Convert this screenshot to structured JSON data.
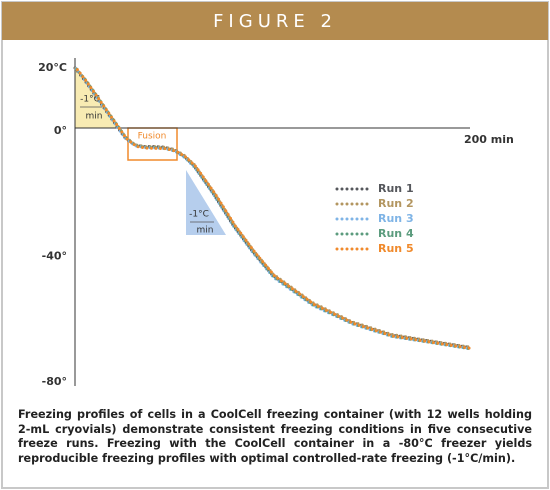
{
  "header": {
    "title": "FIGURE 2"
  },
  "chart_data": {
    "type": "line",
    "x": [
      0,
      5,
      10,
      15,
      20,
      25,
      30,
      35,
      40,
      45,
      50,
      55,
      60,
      70,
      80,
      90,
      100,
      120,
      140,
      160,
      180,
      200
    ],
    "series": [
      {
        "name": "Run 1",
        "color": "#55575c",
        "values": [
          20,
          16,
          11.5,
          7,
          2.5,
          -2,
          -4.5,
          -5,
          -5,
          -5.2,
          -6,
          -8,
          -11,
          -20,
          -30,
          -38.5,
          -46,
          -55,
          -61,
          -65,
          -67,
          -69
        ]
      },
      {
        "name": "Run 2",
        "color": "#b39660",
        "values": [
          20,
          16.3,
          11.8,
          7.3,
          2.8,
          -1.7,
          -4.3,
          -4.9,
          -4.9,
          -5.1,
          -5.8,
          -7.7,
          -10.6,
          -19.5,
          -29.5,
          -38,
          -45.5,
          -54.6,
          -60.7,
          -64.7,
          -66.8,
          -68.8
        ]
      },
      {
        "name": "Run 3",
        "color": "#7fb4e6",
        "values": [
          20,
          15.8,
          11.2,
          6.8,
          2.2,
          -2.2,
          -4.6,
          -5.1,
          -5.2,
          -5.4,
          -6.2,
          -8.3,
          -11.4,
          -20.5,
          -30.5,
          -39,
          -46.5,
          -55.4,
          -61.3,
          -65.3,
          -67.2,
          -69.2
        ]
      },
      {
        "name": "Run 4",
        "color": "#5c9c7e",
        "values": [
          20,
          16.1,
          11.6,
          7.1,
          2.6,
          -1.9,
          -4.4,
          -5,
          -5,
          -5.3,
          -6.1,
          -8.1,
          -11.2,
          -20.2,
          -30.2,
          -38.7,
          -46.2,
          -55.2,
          -61.1,
          -65.1,
          -67.1,
          -69.1
        ]
      },
      {
        "name": "Run 5",
        "color": "#f08a2c",
        "values": [
          20,
          15.9,
          11.4,
          6.9,
          2.4,
          -2.1,
          -4.5,
          -5,
          -5.1,
          -5.2,
          -6,
          -7.9,
          -10.9,
          -19.8,
          -29.8,
          -38.3,
          -45.8,
          -54.8,
          -60.9,
          -64.9,
          -66.9,
          -68.9
        ]
      }
    ],
    "xlim": [
      0,
      200
    ],
    "xticks": [
      {
        "value": 200,
        "label": "200 min"
      }
    ],
    "ylim": [
      -80,
      20
    ],
    "yticks": [
      {
        "value": 20,
        "label": "20°C"
      },
      {
        "value": 0,
        "label": "0°"
      },
      {
        "value": -40,
        "label": "-40°"
      },
      {
        "value": -80,
        "label": "-80°"
      }
    ],
    "rate_labels": [
      {
        "numerator": "-1°C",
        "denominator": "min"
      },
      {
        "numerator": "-1°C",
        "denominator": "min"
      }
    ],
    "fusion_label": "Fusion"
  },
  "caption": "Freezing profiles of cells in a CoolCell freezing container (with 12 wells holding 2-mL cryovials) demonstrate consistent freezing conditions in five consecutive freeze runs. Freezing with the CoolCell container in a -80°C freezer yields reproducible freezing profiles with optimal controlled-rate freezing (-1°C/min)."
}
